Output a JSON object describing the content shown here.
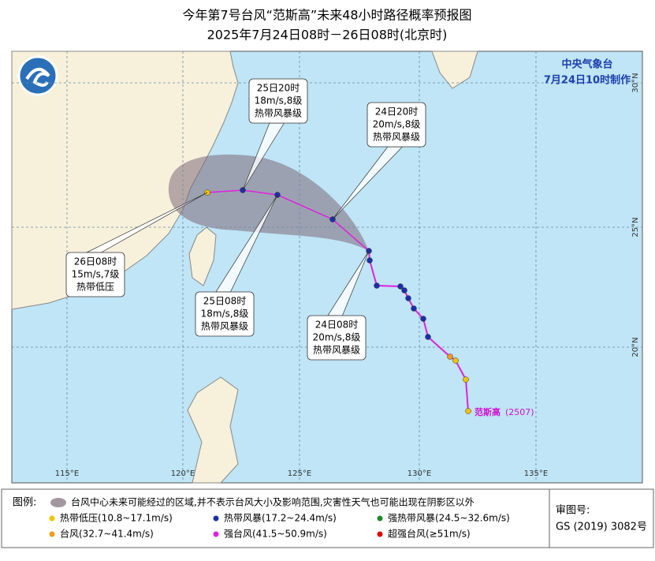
{
  "header": {
    "title": "今年第7号台风“范斯高”未来48小时路径概率预报图",
    "subtitle": "2025年7月24日08时－26日08时(北京时)"
  },
  "agency": {
    "name": "中央气象台",
    "issued": "7月24日10时制作"
  },
  "map": {
    "lat_labels": [
      "30°N",
      "25°N",
      "20°N"
    ],
    "lon_labels": [
      "115°E",
      "120°E",
      "125°E",
      "130°E",
      "135°E"
    ],
    "forecasts": [
      {
        "time": "25日20时",
        "wind": "18m/s,8级",
        "grade": "热带风暴级"
      },
      {
        "time": "24日20时",
        "wind": "20m/s,8级",
        "grade": "热带风暴级"
      },
      {
        "time": "26日08时",
        "wind": "15m/s,7级",
        "grade": "热带低压"
      },
      {
        "time": "25日08时",
        "wind": "18m/s,8级",
        "grade": "热带风暴级"
      },
      {
        "time": "24日08时",
        "wind": "20m/s,8级",
        "grade": "热带风暴级"
      }
    ],
    "storm": {
      "name": "范斯高",
      "code": "(2507)"
    }
  },
  "legend": {
    "title": "图例:",
    "cone_note": "台风中心未来可能经过的区域,并不表示台风大小及影响范围,灾害性天气也可能出现在阴影区以外",
    "items": [
      {
        "label": "热带低压(10.8~17.1m/s)",
        "color": "#f2c200"
      },
      {
        "label": "热带风暴(17.2~24.4m/s)",
        "color": "#1c2fa8"
      },
      {
        "label": "强热带风暴(24.5~32.6m/s)",
        "color": "#1e8a2c"
      },
      {
        "label": "台风(32.7~41.4m/s)",
        "color": "#f39a1a"
      },
      {
        "label": "强台风(41.5~50.9m/s)",
        "color": "#e020e0"
      },
      {
        "label": "超强台风(≥51m/s)",
        "color": "#e00000"
      }
    ]
  },
  "review": {
    "title": "审图号:",
    "number": "GS (2019) 3082号"
  }
}
